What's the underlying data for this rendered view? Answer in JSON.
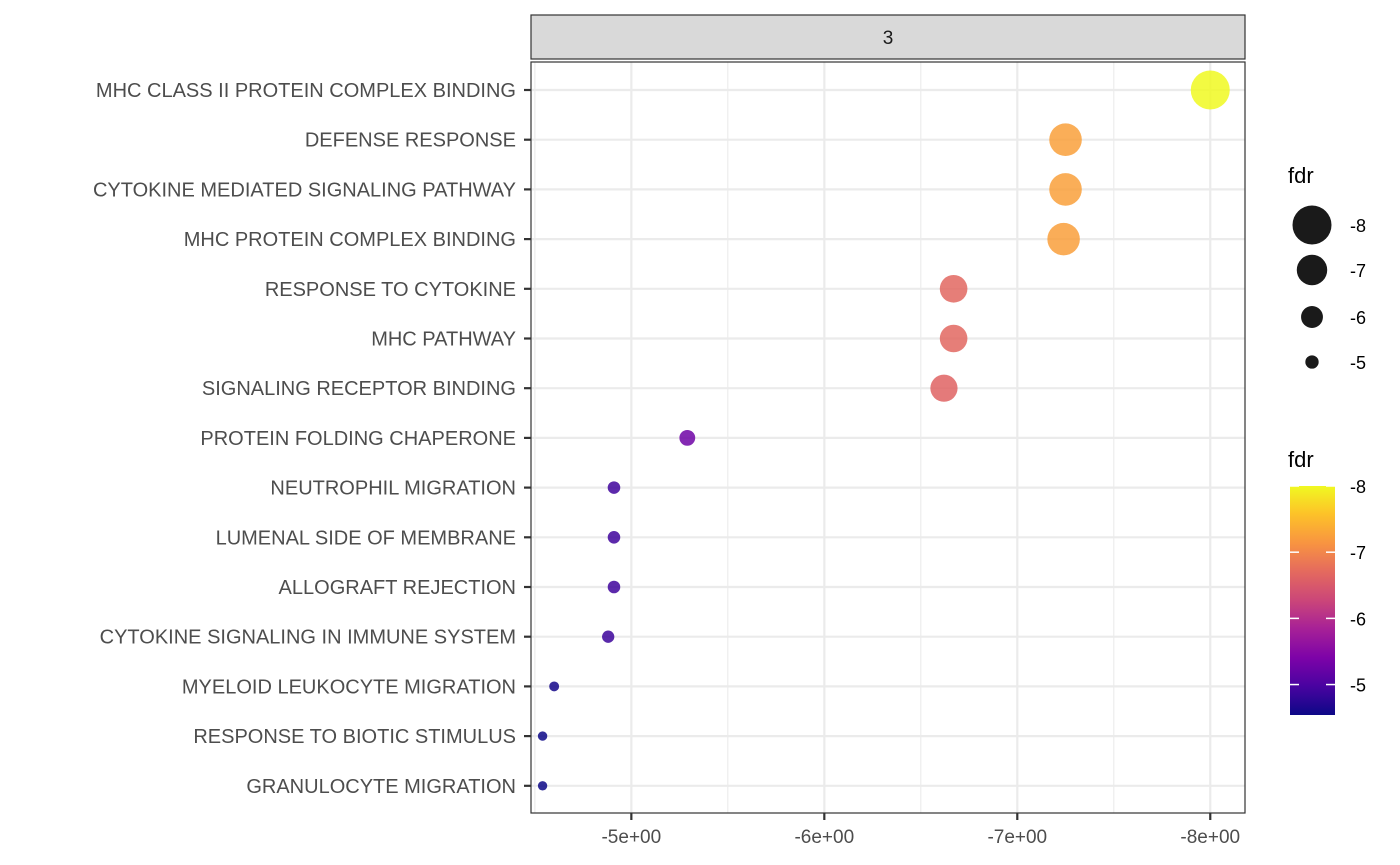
{
  "chart_data": {
    "type": "scatter",
    "facet_label": "3",
    "title": "",
    "xlabel": "",
    "ylabel": "",
    "x_reversed": true,
    "xlim": [
      -4.48,
      -8.18
    ],
    "x_ticks": [
      -5,
      -6,
      -7,
      -8
    ],
    "x_tick_labels": [
      "-5e+00",
      "-6e+00",
      "-7e+00",
      "-8e+00"
    ],
    "grid": true,
    "categories": [
      "MHC CLASS II PROTEIN COMPLEX BINDING",
      "DEFENSE RESPONSE",
      "CYTOKINE MEDIATED SIGNALING PATHWAY",
      "MHC PROTEIN COMPLEX BINDING",
      "RESPONSE TO CYTOKINE",
      "MHC PATHWAY",
      "SIGNALING RECEPTOR BINDING",
      "PROTEIN FOLDING CHAPERONE",
      "NEUTROPHIL MIGRATION",
      "LUMENAL SIDE OF MEMBRANE",
      "ALLOGRAFT REJECTION",
      "CYTOKINE SIGNALING IN IMMUNE SYSTEM",
      "MYELOID LEUKOCYTE MIGRATION",
      "RESPONSE TO BIOTIC STIMULUS",
      "GRANULOCYTE MIGRATION"
    ],
    "values": [
      -8.0,
      -7.25,
      -7.25,
      -7.24,
      -6.67,
      -6.67,
      -6.62,
      -5.29,
      -4.91,
      -4.91,
      -4.91,
      -4.88,
      -4.6,
      -4.54,
      -4.54
    ],
    "legend_size": {
      "title": "fdr",
      "placement": "right",
      "breaks": [
        -8,
        -7,
        -6,
        -5
      ],
      "labels": [
        "-8",
        "-7",
        "-6",
        "-5"
      ]
    },
    "legend_color": {
      "title": "fdr",
      "placement": "right",
      "palette": "plasma",
      "range": [
        -4.54,
        -8.0
      ],
      "breaks": [
        -8,
        -7,
        -6,
        -5
      ],
      "labels": [
        "-8",
        "-7",
        "-6",
        "-5"
      ]
    }
  }
}
